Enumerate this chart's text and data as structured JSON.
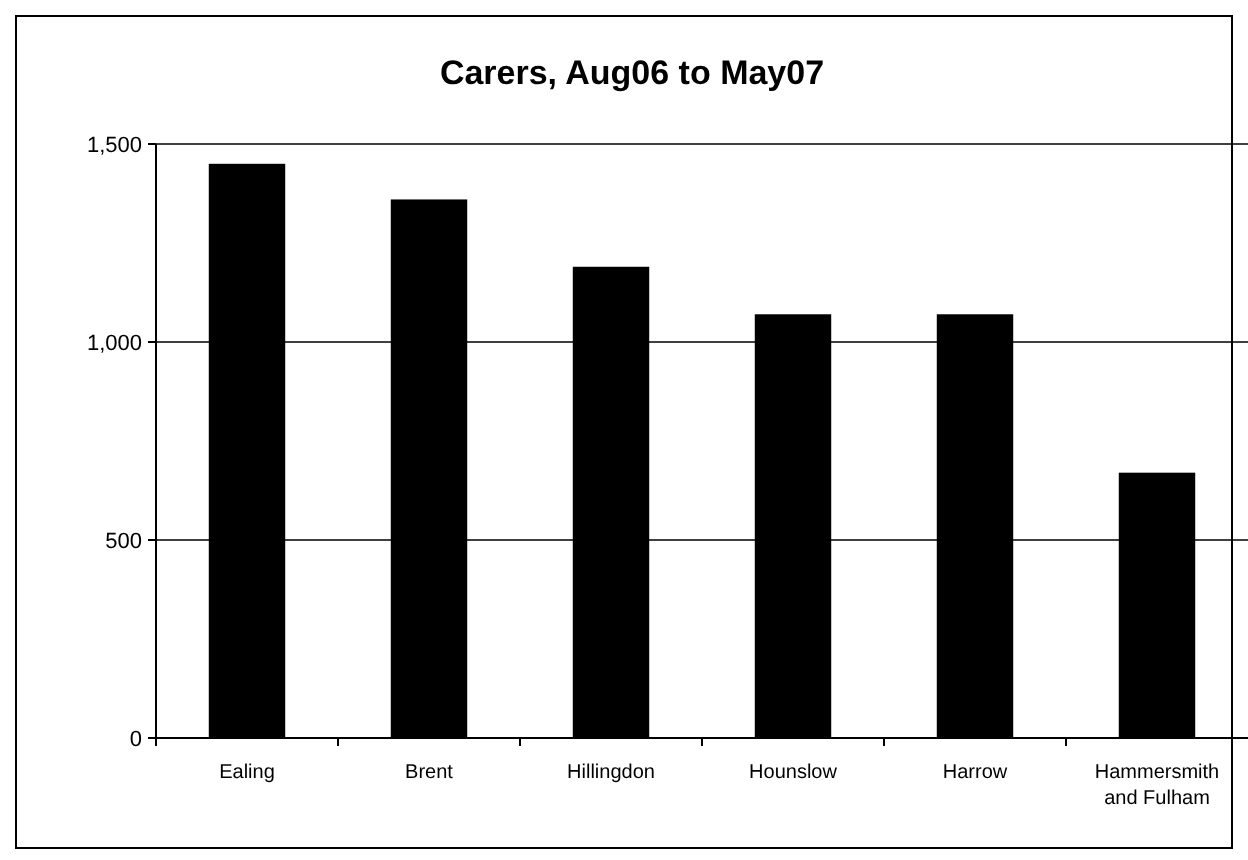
{
  "chart_data": {
    "type": "bar",
    "title": "Carers, Aug06 to May07",
    "categories": [
      "Ealing",
      "Brent",
      "Hillingdon",
      "Hounslow",
      "Harrow",
      "Hammersmith and Fulham"
    ],
    "values": [
      1450,
      1360,
      1190,
      1070,
      1070,
      670
    ],
    "color": "#000000",
    "ylim": [
      0,
      1500
    ],
    "yticks": [
      {
        "value": 0,
        "label": "0"
      },
      {
        "value": 500,
        "label": "500"
      },
      {
        "value": 1000,
        "label": "1,000"
      },
      {
        "value": 1500,
        "label": "1,500"
      }
    ],
    "grid": "y"
  }
}
